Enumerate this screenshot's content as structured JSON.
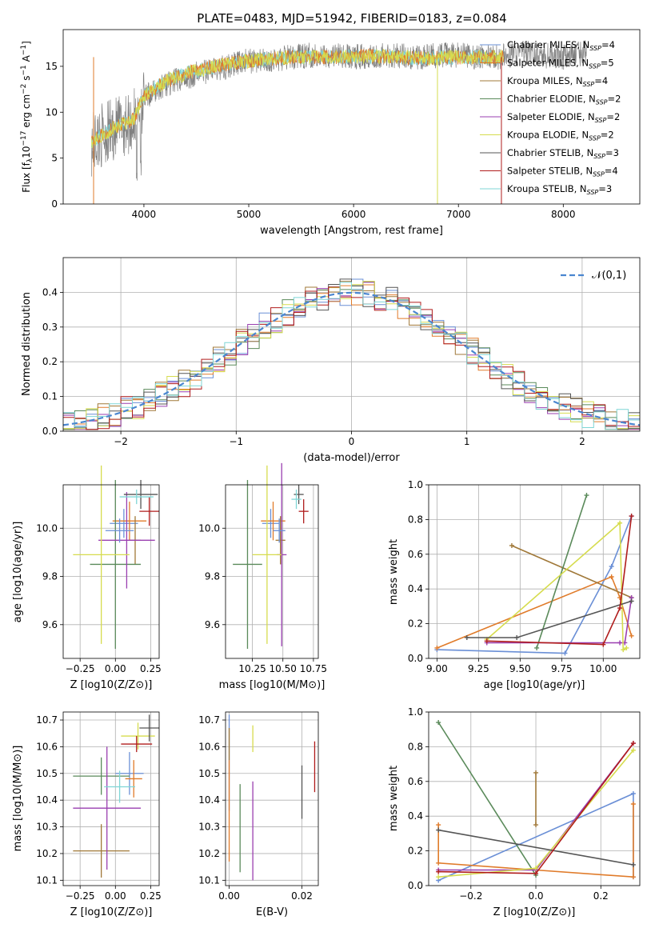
{
  "title": "PLATE=0483, MJD=51942, FIBERID=0183, z=0.084",
  "series_colors": [
    "#6a8fd6",
    "#e07b2a",
    "#a07838",
    "#5a8a5a",
    "#9a3fb0",
    "#d6dc4e",
    "#555555",
    "#b01c1c",
    "#7fd6d6"
  ],
  "chart_data": [
    {
      "type": "line",
      "title": "PLATE=0483, MJD=51942, FIBERID=0183, z=0.084",
      "xlabel": "wavelength [Angstrom, rest frame]",
      "ylabel": "Flux [f_λ 10^-17 erg cm^-2 s^-1 A^-1]",
      "xlim": [
        3230,
        8730
      ],
      "ylim": [
        0,
        19
      ],
      "xticks": [
        "4000",
        "5000",
        "6000",
        "7000",
        "8000"
      ],
      "yticks": [
        "0",
        "5",
        "10",
        "15"
      ],
      "grid": false,
      "legend_position": "top-right",
      "legend": [
        "Chabrier MILES, N_SSP=4",
        "Salpeter MILES, N_SSP=5",
        "Kroupa MILES, N_SSP=4",
        "Chabrier ELODIE, N_SSP=2",
        "Salpeter ELODIE, N_SSP=2",
        "Kroupa ELODIE, N_SSP=2",
        "Chabrier STELIB, N_SSP=3",
        "Salpeter STELIB, N_SSP=4",
        "Kroupa STELIB, N_SSP=3"
      ],
      "observed_spectrum": {
        "x": [
          3500,
          3600,
          3700,
          3800,
          3900,
          4000,
          4200,
          4400,
          4600,
          4800,
          5000,
          5200,
          5400,
          5600,
          5800,
          6000,
          6200,
          6400,
          6600,
          6800,
          7000,
          7200,
          7400,
          7600,
          7800,
          8000,
          8200
        ],
        "y": [
          6.5,
          7.5,
          8.0,
          8.6,
          9.0,
          11.5,
          13.0,
          13.8,
          14.5,
          15.0,
          15.6,
          15.6,
          16.0,
          16.2,
          16.2,
          16.0,
          16.2,
          16.2,
          16.0,
          16.2,
          16.2,
          16.0,
          16.0,
          16.5,
          16.2,
          16.0,
          16.5
        ]
      },
      "model_fit": {
        "x": [
          3500,
          3700,
          3900,
          4000,
          4200,
          4400,
          4600,
          4800,
          5000,
          5400,
          5800,
          6200,
          6600,
          7000,
          7400
        ],
        "y": [
          6.8,
          8.2,
          9.2,
          11.8,
          13.3,
          14.2,
          14.8,
          15.3,
          15.6,
          16.0,
          16.0,
          16.1,
          15.9,
          16.0,
          16.0
        ]
      }
    },
    {
      "type": "line",
      "xlabel": "(data-model)/error",
      "ylabel": "Normed distribution",
      "xlim": [
        -2.5,
        2.5
      ],
      "ylim": [
        0,
        0.5
      ],
      "xticks": [
        "−2",
        "−1",
        "0",
        "1",
        "2"
      ],
      "yticks": [
        "0.0",
        "0.1",
        "0.2",
        "0.3",
        "0.4"
      ],
      "grid": true,
      "legend": [
        "𝒩(0,1)"
      ],
      "legend_position": "top-right",
      "histogram_bin_width": 0.1
    },
    {
      "type": "scatter",
      "xlabel": "Z [log10(Z/Z⊙)]",
      "ylabel": "age  [log10(age/yr)]",
      "xlim": [
        -0.37,
        0.31
      ],
      "ylim": [
        9.46,
        10.18
      ],
      "xticks": [
        "−0.25",
        "0.00",
        "0.25"
      ],
      "yticks": [
        "9.6",
        "9.8",
        "10.0"
      ],
      "grid": true,
      "points": [
        {
          "x": 0.06,
          "xerr": 0.1,
          "y": 10.02,
          "yerr": 0.06
        },
        {
          "x": 0.1,
          "xerr": 0.12,
          "y": 10.03,
          "yerr": 0.08
        },
        {
          "x": 0.14,
          "xerr": 0.04,
          "y": 9.95,
          "yerr": 0.1
        },
        {
          "x": 0.0,
          "xerr": 0.18,
          "y": 9.85,
          "yerr": 0.35
        },
        {
          "x": 0.08,
          "xerr": 0.2,
          "y": 9.95,
          "yerr": 0.2
        },
        {
          "x": -0.1,
          "xerr": 0.2,
          "y": 9.89,
          "yerr": 0.37
        },
        {
          "x": 0.18,
          "xerr": 0.12,
          "y": 10.14,
          "yerr": 0.06
        },
        {
          "x": 0.24,
          "xerr": 0.07,
          "y": 10.07,
          "yerr": 0.06
        },
        {
          "x": 0.15,
          "xerr": 0.12,
          "y": 10.13,
          "yerr": 0.03
        },
        {
          "x": 0.03,
          "xerr": 0.1,
          "y": 9.99,
          "yerr": 0.05
        }
      ]
    },
    {
      "type": "scatter",
      "xlabel": "mass [log10(M/M⊙)]",
      "xlim": [
        10.03,
        10.79
      ],
      "ylim": [
        9.46,
        10.18
      ],
      "xticks": [
        "10.25",
        "10.50",
        "10.75"
      ],
      "yticks": [
        "9.6",
        "9.8",
        "10.0"
      ],
      "grid": true,
      "points": [
        {
          "x": 10.4,
          "xerr": 0.07,
          "y": 10.02,
          "yerr": 0.06
        },
        {
          "x": 10.42,
          "xerr": 0.1,
          "y": 10.03,
          "yerr": 0.08
        },
        {
          "x": 10.48,
          "xerr": 0.04,
          "y": 9.95,
          "yerr": 0.1
        },
        {
          "x": 10.21,
          "xerr": 0.12,
          "y": 9.85,
          "yerr": 0.35
        },
        {
          "x": 10.49,
          "xerr": 0.04,
          "y": 9.89,
          "yerr": 0.38
        },
        {
          "x": 10.37,
          "xerr": 0.12,
          "y": 9.89,
          "yerr": 0.37
        },
        {
          "x": 10.63,
          "xerr": 0.04,
          "y": 10.14,
          "yerr": 0.04
        },
        {
          "x": 10.67,
          "xerr": 0.04,
          "y": 10.07,
          "yerr": 0.05
        },
        {
          "x": 10.61,
          "xerr": 0.04,
          "y": 10.12,
          "yerr": 0.04
        },
        {
          "x": 10.47,
          "xerr": 0.05,
          "y": 9.99,
          "yerr": 0.05
        }
      ]
    },
    {
      "type": "line",
      "xlabel": "age  [log10(age/yr)]",
      "ylabel": "mass weight",
      "xlim": [
        8.95,
        10.22
      ],
      "ylim": [
        0,
        1
      ],
      "xticks": [
        "9.00",
        "9.25",
        "9.50",
        "9.75",
        "10.00"
      ],
      "yticks": [
        "0.0",
        "0.2",
        "0.4",
        "0.6",
        "0.8",
        "1.0"
      ],
      "grid": true,
      "series": [
        {
          "x": [
            9.0,
            9.77,
            10.05,
            10.17
          ],
          "values": [
            0.05,
            0.03,
            0.53,
            0.82
          ]
        },
        {
          "x": [
            9.0,
            10.05,
            10.1,
            10.17
          ],
          "values": [
            0.06,
            0.47,
            0.35,
            0.13
          ]
        },
        {
          "x": [
            9.45,
            10.17
          ],
          "values": [
            0.65,
            0.35
          ]
        },
        {
          "x": [
            9.6,
            9.9
          ],
          "values": [
            0.06,
            0.94
          ]
        },
        {
          "x": [
            9.3,
            10.1,
            10.13,
            10.17
          ],
          "values": [
            0.09,
            0.09,
            0.09,
            0.35
          ]
        },
        {
          "x": [
            9.3,
            10.1,
            10.12,
            10.14
          ],
          "values": [
            0.11,
            0.78,
            0.05,
            0.06
          ]
        },
        {
          "x": [
            9.18,
            9.48,
            10.17
          ],
          "values": [
            0.12,
            0.12,
            0.33
          ]
        },
        {
          "x": [
            9.3,
            10.0,
            10.1,
            10.17
          ],
          "values": [
            0.1,
            0.08,
            0.29,
            0.82
          ]
        }
      ]
    },
    {
      "type": "scatter",
      "xlabel": "Z [log10(Z/Z⊙)]",
      "ylabel": "mass [log10(M/M⊙)]",
      "xlim": [
        -0.37,
        0.31
      ],
      "ylim": [
        10.08,
        10.73
      ],
      "xticks": [
        "−0.25",
        "0.00",
        "0.25"
      ],
      "yticks": [
        "10.1",
        "10.2",
        "10.3",
        "10.4",
        "10.5",
        "10.6",
        "10.7"
      ],
      "grid": true,
      "points": [
        {
          "x": 0.1,
          "xerr": 0.1,
          "y": 10.5,
          "yerr": 0.08
        },
        {
          "x": 0.13,
          "xerr": 0.06,
          "y": 10.48,
          "yerr": 0.07
        },
        {
          "x": -0.1,
          "xerr": 0.2,
          "y": 10.21,
          "yerr": 0.1
        },
        {
          "x": -0.1,
          "xerr": 0.2,
          "y": 10.49,
          "yerr": 0.07
        },
        {
          "x": -0.06,
          "xerr": 0.24,
          "y": 10.37,
          "yerr": 0.23
        },
        {
          "x": 0.16,
          "xerr": 0.12,
          "y": 10.64,
          "yerr": 0.05
        },
        {
          "x": 0.24,
          "xerr": 0.07,
          "y": 10.67,
          "yerr": 0.05
        },
        {
          "x": 0.15,
          "xerr": 0.11,
          "y": 10.61,
          "yerr": 0.03
        },
        {
          "x": 0.03,
          "xerr": 0.11,
          "y": 10.45,
          "yerr": 0.06
        }
      ]
    },
    {
      "type": "scatter",
      "xlabel": "E(B-V)",
      "xlim": [
        -0.001,
        0.0245
      ],
      "ylim": [
        10.08,
        10.73
      ],
      "xticks": [
        "0.00",
        "0.02"
      ],
      "yticks": [
        "10.1",
        "10.2",
        "10.3",
        "10.4",
        "10.5",
        "10.6",
        "10.7"
      ],
      "grid": true,
      "errorbars": [
        {
          "x": 0.0,
          "ymin": 10.36,
          "ymax": 10.72
        },
        {
          "x": 0.0,
          "ymin": 10.17,
          "ymax": 10.55
        },
        {
          "x": 0.0,
          "ymin": 10.55,
          "ymax": 10.67
        },
        {
          "x": 0.003,
          "ymin": 10.13,
          "ymax": 10.46
        },
        {
          "x": 0.0065,
          "ymin": 10.1,
          "ymax": 10.47
        },
        {
          "x": 0.0065,
          "ymin": 10.58,
          "ymax": 10.68
        },
        {
          "x": 0.02,
          "ymin": 10.33,
          "ymax": 10.53
        },
        {
          "x": 0.0235,
          "ymin": 10.43,
          "ymax": 10.62
        }
      ]
    },
    {
      "type": "line",
      "xlabel": "Z [log10(Z/Z⊙)]",
      "ylabel": "mass weight",
      "xlim": [
        -0.33,
        0.32
      ],
      "ylim": [
        0,
        1
      ],
      "xticks": [
        "−0.2",
        "0.0",
        "0.2"
      ],
      "yticks": [
        "0.0",
        "0.2",
        "0.4",
        "0.6",
        "0.8",
        "1.0"
      ],
      "grid": true,
      "series": [
        {
          "x": [
            -0.3,
            0.3,
            0.3
          ],
          "values": [
            0.03,
            0.53,
            0.05
          ]
        },
        {
          "x": [
            -0.3,
            -0.3,
            0.3,
            0.3
          ],
          "values": [
            0.35,
            0.13,
            0.05,
            0.47
          ]
        },
        {
          "x": [
            0.0,
            0.0
          ],
          "values": [
            0.35,
            0.65
          ]
        },
        {
          "x": [
            -0.3,
            0.0
          ],
          "values": [
            0.94,
            0.06
          ]
        },
        {
          "x": [
            -0.3,
            0.0,
            0.3
          ],
          "values": [
            0.09,
            0.09,
            0.82
          ]
        },
        {
          "x": [
            -0.3,
            0.0,
            0.3
          ],
          "values": [
            0.05,
            0.1,
            0.78
          ]
        },
        {
          "x": [
            -0.3,
            0.3
          ],
          "values": [
            0.32,
            0.12
          ]
        },
        {
          "x": [
            -0.3,
            0.0,
            0.3
          ],
          "values": [
            0.08,
            0.07,
            0.82
          ]
        }
      ]
    }
  ]
}
